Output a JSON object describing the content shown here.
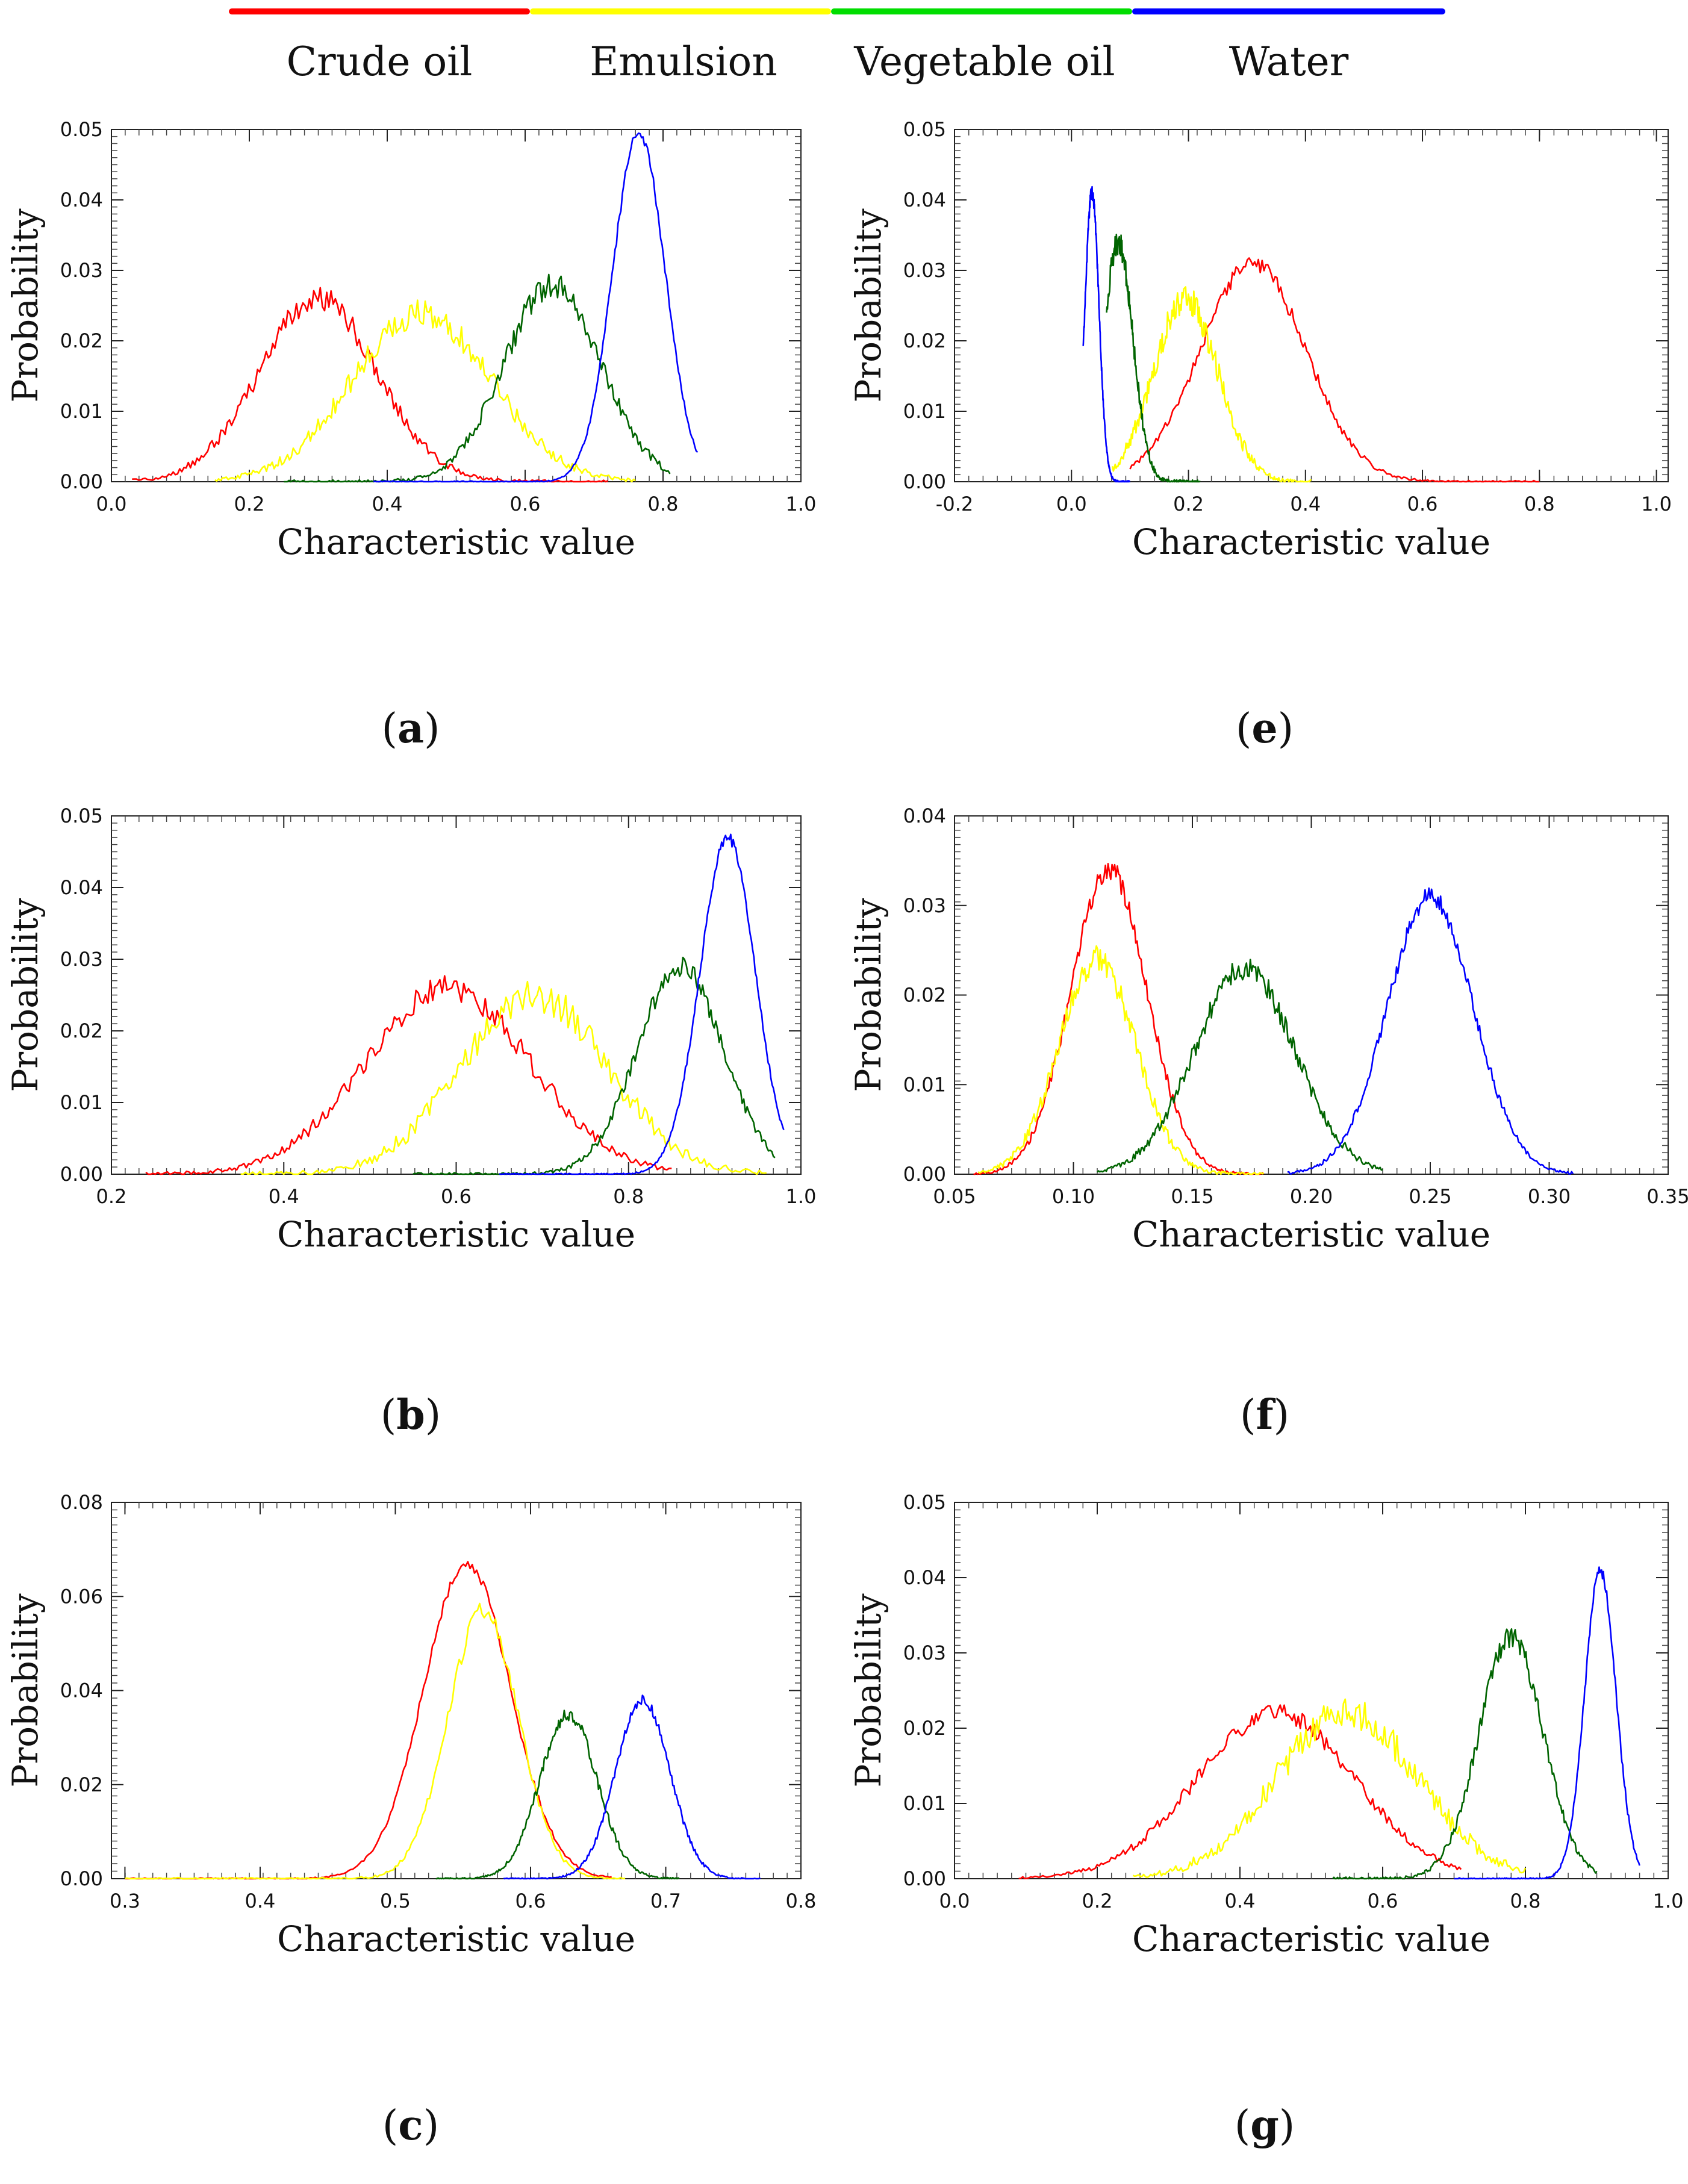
{
  "legend": [
    {
      "name": "Crude oil",
      "color": "#ff0000"
    },
    {
      "name": "Emulsion",
      "color": "#ffff00"
    },
    {
      "name": "Vegetable oil",
      "color": "#00dd00"
    },
    {
      "name": "Water",
      "color": "#0000ff"
    }
  ],
  "series_colors": {
    "Crude oil": "#ff0000",
    "Emulsion": "#ffff00",
    "Vegetable oil": "#006400",
    "Water": "#0000ff"
  },
  "chart_data": [
    {
      "id": "a",
      "panel_label": "a",
      "type": "line",
      "xlabel": "Characteristic value",
      "ylabel": "Probability",
      "xlim": [
        0.0,
        1.0
      ],
      "ylim": [
        0.0,
        0.05
      ],
      "xticks": [
        "0.0",
        "0.2",
        "0.4",
        "0.6",
        "0.8",
        "1.0"
      ],
      "yticks": [
        "0.00",
        "0.01",
        "0.02",
        "0.03",
        "0.04",
        "0.05"
      ],
      "series": [
        {
          "name": "Crude oil",
          "peaks": [
            {
              "mu": 0.3,
              "sigma": 0.085,
              "amp": 0.026
            }
          ],
          "range": [
            0.03,
            0.72
          ],
          "noise": 0.0018
        },
        {
          "name": "Emulsion",
          "peaks": [
            {
              "mu": 0.45,
              "sigma": 0.1,
              "amp": 0.024
            }
          ],
          "range": [
            0.15,
            0.76
          ],
          "noise": 0.002
        },
        {
          "name": "Vegetable oil",
          "peaks": [
            {
              "mu": 0.64,
              "sigma": 0.07,
              "amp": 0.028
            }
          ],
          "range": [
            0.25,
            0.81
          ],
          "noise": 0.0018
        },
        {
          "name": "Water",
          "peaks": [
            {
              "mu": 0.765,
              "sigma": 0.038,
              "amp": 0.0495
            }
          ],
          "range": [
            0.38,
            0.85
          ],
          "noise": 0.0008
        }
      ]
    },
    {
      "id": "b",
      "panel_label": "b",
      "type": "line",
      "xlabel": "Characteristic value",
      "ylabel": "Probability",
      "xlim": [
        0.2,
        1.0
      ],
      "ylim": [
        0.0,
        0.05
      ],
      "xticks": [
        "0.2",
        "0.4",
        "0.6",
        "0.8",
        "1.0"
      ],
      "yticks": [
        "0.00",
        "0.01",
        "0.02",
        "0.03",
        "0.04",
        "0.05"
      ],
      "series": [
        {
          "name": "Crude oil",
          "peaks": [
            {
              "mu": 0.59,
              "sigma": 0.095,
              "amp": 0.026
            }
          ],
          "range": [
            0.24,
            0.85
          ],
          "noise": 0.0018
        },
        {
          "name": "Emulsion",
          "peaks": [
            {
              "mu": 0.69,
              "sigma": 0.085,
              "amp": 0.025
            }
          ],
          "range": [
            0.35,
            0.96
          ],
          "noise": 0.0025
        },
        {
          "name": "Vegetable oil",
          "peaks": [
            {
              "mu": 0.86,
              "sigma": 0.05,
              "amp": 0.029
            }
          ],
          "range": [
            0.55,
            0.97
          ],
          "noise": 0.0015
        },
        {
          "name": "Water",
          "peaks": [
            {
              "mu": 0.915,
              "sigma": 0.032,
              "amp": 0.047
            }
          ],
          "range": [
            0.65,
            0.98
          ],
          "noise": 0.0008
        }
      ]
    },
    {
      "id": "c",
      "panel_label": "c",
      "type": "line",
      "xlabel": "Characteristic value",
      "ylabel": "Probability",
      "xlim": [
        0.29,
        0.8
      ],
      "ylim": [
        0.0,
        0.08
      ],
      "xticks": [
        "0.3",
        "0.4",
        "0.5",
        "0.6",
        "0.7",
        "0.8"
      ],
      "yticks": [
        "0.00",
        "0.02",
        "0.04",
        "0.06",
        "0.08"
      ],
      "series": [
        {
          "name": "Crude oil",
          "peaks": [
            {
              "mu": 0.553,
              "sigma": 0.032,
              "amp": 0.067
            }
          ],
          "range": [
            0.3,
            0.66
          ],
          "noise": 0.0012
        },
        {
          "name": "Emulsion",
          "peaks": [
            {
              "mu": 0.565,
              "sigma": 0.026,
              "amp": 0.057
            }
          ],
          "range": [
            0.3,
            0.67
          ],
          "noise": 0.0018
        },
        {
          "name": "Vegetable oil",
          "peaks": [
            {
              "mu": 0.628,
              "sigma": 0.021,
              "amp": 0.035
            }
          ],
          "range": [
            0.53,
            0.71
          ],
          "noise": 0.0014
        },
        {
          "name": "Water",
          "peaks": [
            {
              "mu": 0.683,
              "sigma": 0.02,
              "amp": 0.038
            }
          ],
          "range": [
            0.58,
            0.77
          ],
          "noise": 0.0012
        }
      ]
    },
    {
      "id": "e",
      "panel_label": "e",
      "type": "line",
      "xlabel": "Characteristic value",
      "ylabel": "Probability",
      "xlim": [
        -0.2,
        1.02
      ],
      "ylim": [
        0.0,
        0.05
      ],
      "xticks": [
        "-0.2",
        "0.0",
        "0.2",
        "0.4",
        "0.6",
        "0.8",
        "1.0"
      ],
      "yticks": [
        "0.00",
        "0.01",
        "0.02",
        "0.03",
        "0.04",
        "0.05"
      ],
      "series": [
        {
          "name": "Crude oil",
          "peaks": [
            {
              "mu": 0.31,
              "sigma": 0.09,
              "amp": 0.031
            }
          ],
          "range": [
            0.1,
            0.8
          ],
          "noise": 0.0012
        },
        {
          "name": "Emulsion",
          "peaks": [
            {
              "mu": 0.195,
              "sigma": 0.055,
              "amp": 0.026
            }
          ],
          "range": [
            0.07,
            0.41
          ],
          "noise": 0.0022
        },
        {
          "name": "Vegetable oil",
          "peaks": [
            {
              "mu": 0.08,
              "sigma": 0.025,
              "amp": 0.034
            }
          ],
          "range": [
            0.06,
            0.22
          ],
          "noise": 0.0018
        },
        {
          "name": "Water",
          "peaks": [
            {
              "mu": 0.035,
              "sigma": 0.012,
              "amp": 0.041
            }
          ],
          "range": [
            0.02,
            0.1
          ],
          "noise": 0.001
        }
      ]
    },
    {
      "id": "f",
      "panel_label": "f",
      "type": "line",
      "xlabel": "Characteristic value",
      "ylabel": "Probability",
      "xlim": [
        0.05,
        0.35
      ],
      "ylim": [
        0.0,
        0.04
      ],
      "xticks": [
        "0.05",
        "0.10",
        "0.15",
        "0.20",
        "0.25",
        "0.30",
        "0.35"
      ],
      "yticks": [
        "0.00",
        "0.01",
        "0.02",
        "0.03",
        "0.04"
      ],
      "series": [
        {
          "name": "Crude oil",
          "peaks": [
            {
              "mu": 0.115,
              "sigma": 0.016,
              "amp": 0.034
            }
          ],
          "range": [
            0.058,
            0.18
          ],
          "noise": 0.0012
        },
        {
          "name": "Emulsion",
          "peaks": [
            {
              "mu": 0.11,
              "sigma": 0.016,
              "amp": 0.024
            }
          ],
          "range": [
            0.06,
            0.18
          ],
          "noise": 0.0015
        },
        {
          "name": "Vegetable oil",
          "peaks": [
            {
              "mu": 0.172,
              "sigma": 0.021,
              "amp": 0.023
            }
          ],
          "range": [
            0.11,
            0.23
          ],
          "noise": 0.0013
        },
        {
          "name": "Water",
          "peaks": [
            {
              "mu": 0.25,
              "sigma": 0.018,
              "amp": 0.031
            }
          ],
          "range": [
            0.19,
            0.31
          ],
          "noise": 0.001
        }
      ]
    },
    {
      "id": "g",
      "panel_label": "g",
      "type": "line",
      "xlabel": "Characteristic value",
      "ylabel": "Probability",
      "xlim": [
        0.0,
        1.0
      ],
      "ylim": [
        0.0,
        0.05
      ],
      "xticks": [
        "0.0",
        "0.2",
        "0.4",
        "0.6",
        "0.8",
        "1.0"
      ],
      "yticks": [
        "0.00",
        "0.01",
        "0.02",
        "0.03",
        "0.04",
        "0.05"
      ],
      "series": [
        {
          "name": "Crude oil",
          "peaks": [
            {
              "mu": 0.45,
              "sigma": 0.11,
              "amp": 0.022
            }
          ],
          "range": [
            0.09,
            0.71
          ],
          "noise": 0.0012
        },
        {
          "name": "Emulsion",
          "peaks": [
            {
              "mu": 0.55,
              "sigma": 0.1,
              "amp": 0.022
            }
          ],
          "range": [
            0.25,
            0.8
          ],
          "noise": 0.0022
        },
        {
          "name": "Vegetable oil",
          "peaks": [
            {
              "mu": 0.78,
              "sigma": 0.045,
              "amp": 0.032
            }
          ],
          "range": [
            0.53,
            0.9
          ],
          "noise": 0.0015
        },
        {
          "name": "Water",
          "peaks": [
            {
              "mu": 0.905,
              "sigma": 0.022,
              "amp": 0.041
            }
          ],
          "range": [
            0.7,
            0.96
          ],
          "noise": 0.0008
        }
      ]
    }
  ]
}
